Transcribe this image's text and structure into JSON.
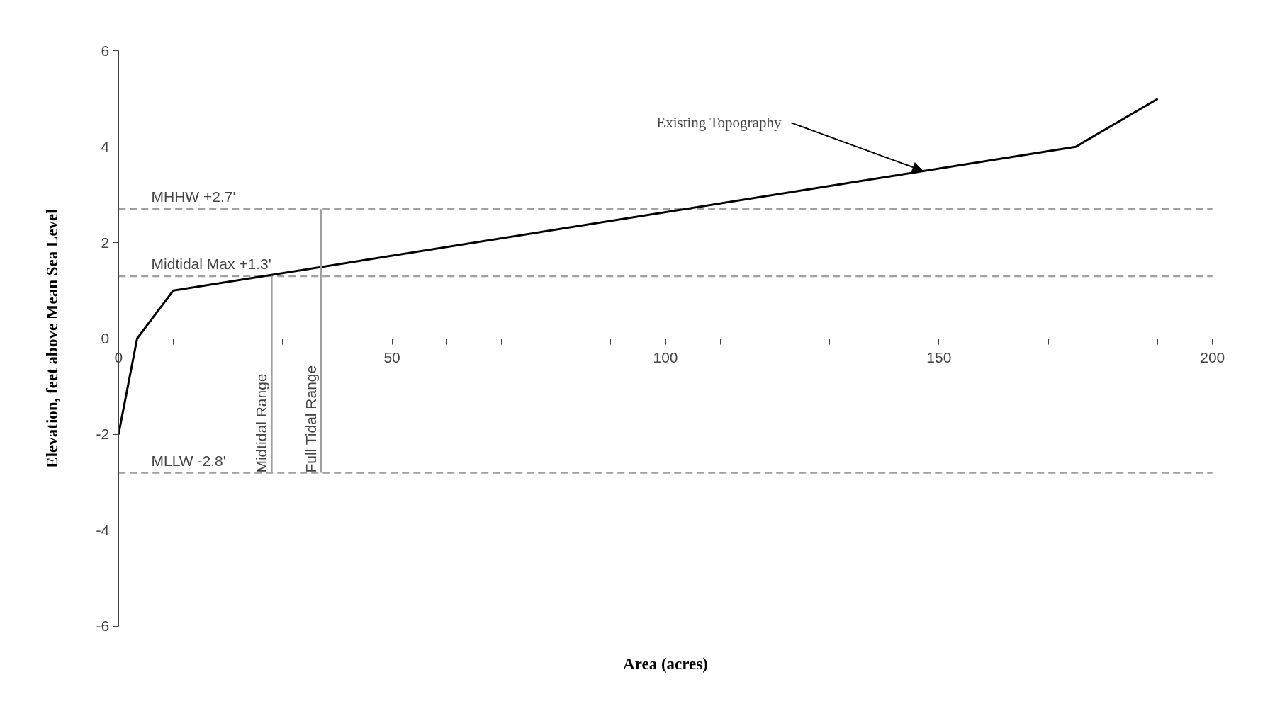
{
  "chart_data": {
    "type": "line",
    "xlabel": "Area (acres)",
    "ylabel": "Elevation, feet above Mean Sea Level",
    "xlim": [
      0,
      200
    ],
    "ylim": [
      -6,
      6
    ],
    "xticks": [
      0,
      {
        "value": 10,
        "label": null
      },
      {
        "value": 20,
        "label": null
      },
      {
        "value": 30,
        "label": null
      },
      {
        "value": 40,
        "label": null
      },
      50,
      {
        "value": 60,
        "label": null
      },
      {
        "value": 70,
        "label": null
      },
      {
        "value": 80,
        "label": null
      },
      {
        "value": 90,
        "label": null
      },
      100,
      {
        "value": 110,
        "label": null
      },
      {
        "value": 120,
        "label": null
      },
      {
        "value": 130,
        "label": null
      },
      {
        "value": 140,
        "label": null
      },
      150,
      {
        "value": 160,
        "label": null
      },
      {
        "value": 170,
        "label": null
      },
      {
        "value": 180,
        "label": null
      },
      {
        "value": 190,
        "label": null
      },
      200
    ],
    "yticks": [
      -6,
      -4,
      -2,
      0,
      2,
      4,
      6
    ],
    "grid": false,
    "marker": "none",
    "series": [
      {
        "color": "#000000",
        "x": [
          0,
          3.4,
          10,
          175,
          190
        ],
        "values": [
          -2,
          0,
          1,
          4,
          5
        ]
      },
      {
        "name": "Midtidal Range",
        "color": "#a0a0a0",
        "x": [
          28,
          28
        ],
        "values": [
          -2.8,
          1.3
        ]
      },
      {
        "name": "Full Tidal Range",
        "color": "#a0a0a0",
        "x": [
          37,
          37
        ],
        "values": [
          -2.8,
          2.7
        ]
      }
    ],
    "ref_lines": [
      {
        "axis": "y",
        "value": 2.7,
        "label": "MHHW +2.7'",
        "color": "#a0a0a0",
        "line_style": "dashed"
      },
      {
        "axis": "y",
        "value": 1.3,
        "label": "Midtidal Max +1.3'",
        "color": "#a0a0a0",
        "line_style": "dashed"
      },
      {
        "axis": "y",
        "value": -2.8,
        "label": "MLLW -2.8'",
        "color": "#a0a0a0",
        "line_style": "dashed"
      }
    ],
    "annotations": [
      {
        "text": "Existing Topography",
        "x": 147,
        "y": 3.5
      }
    ]
  }
}
